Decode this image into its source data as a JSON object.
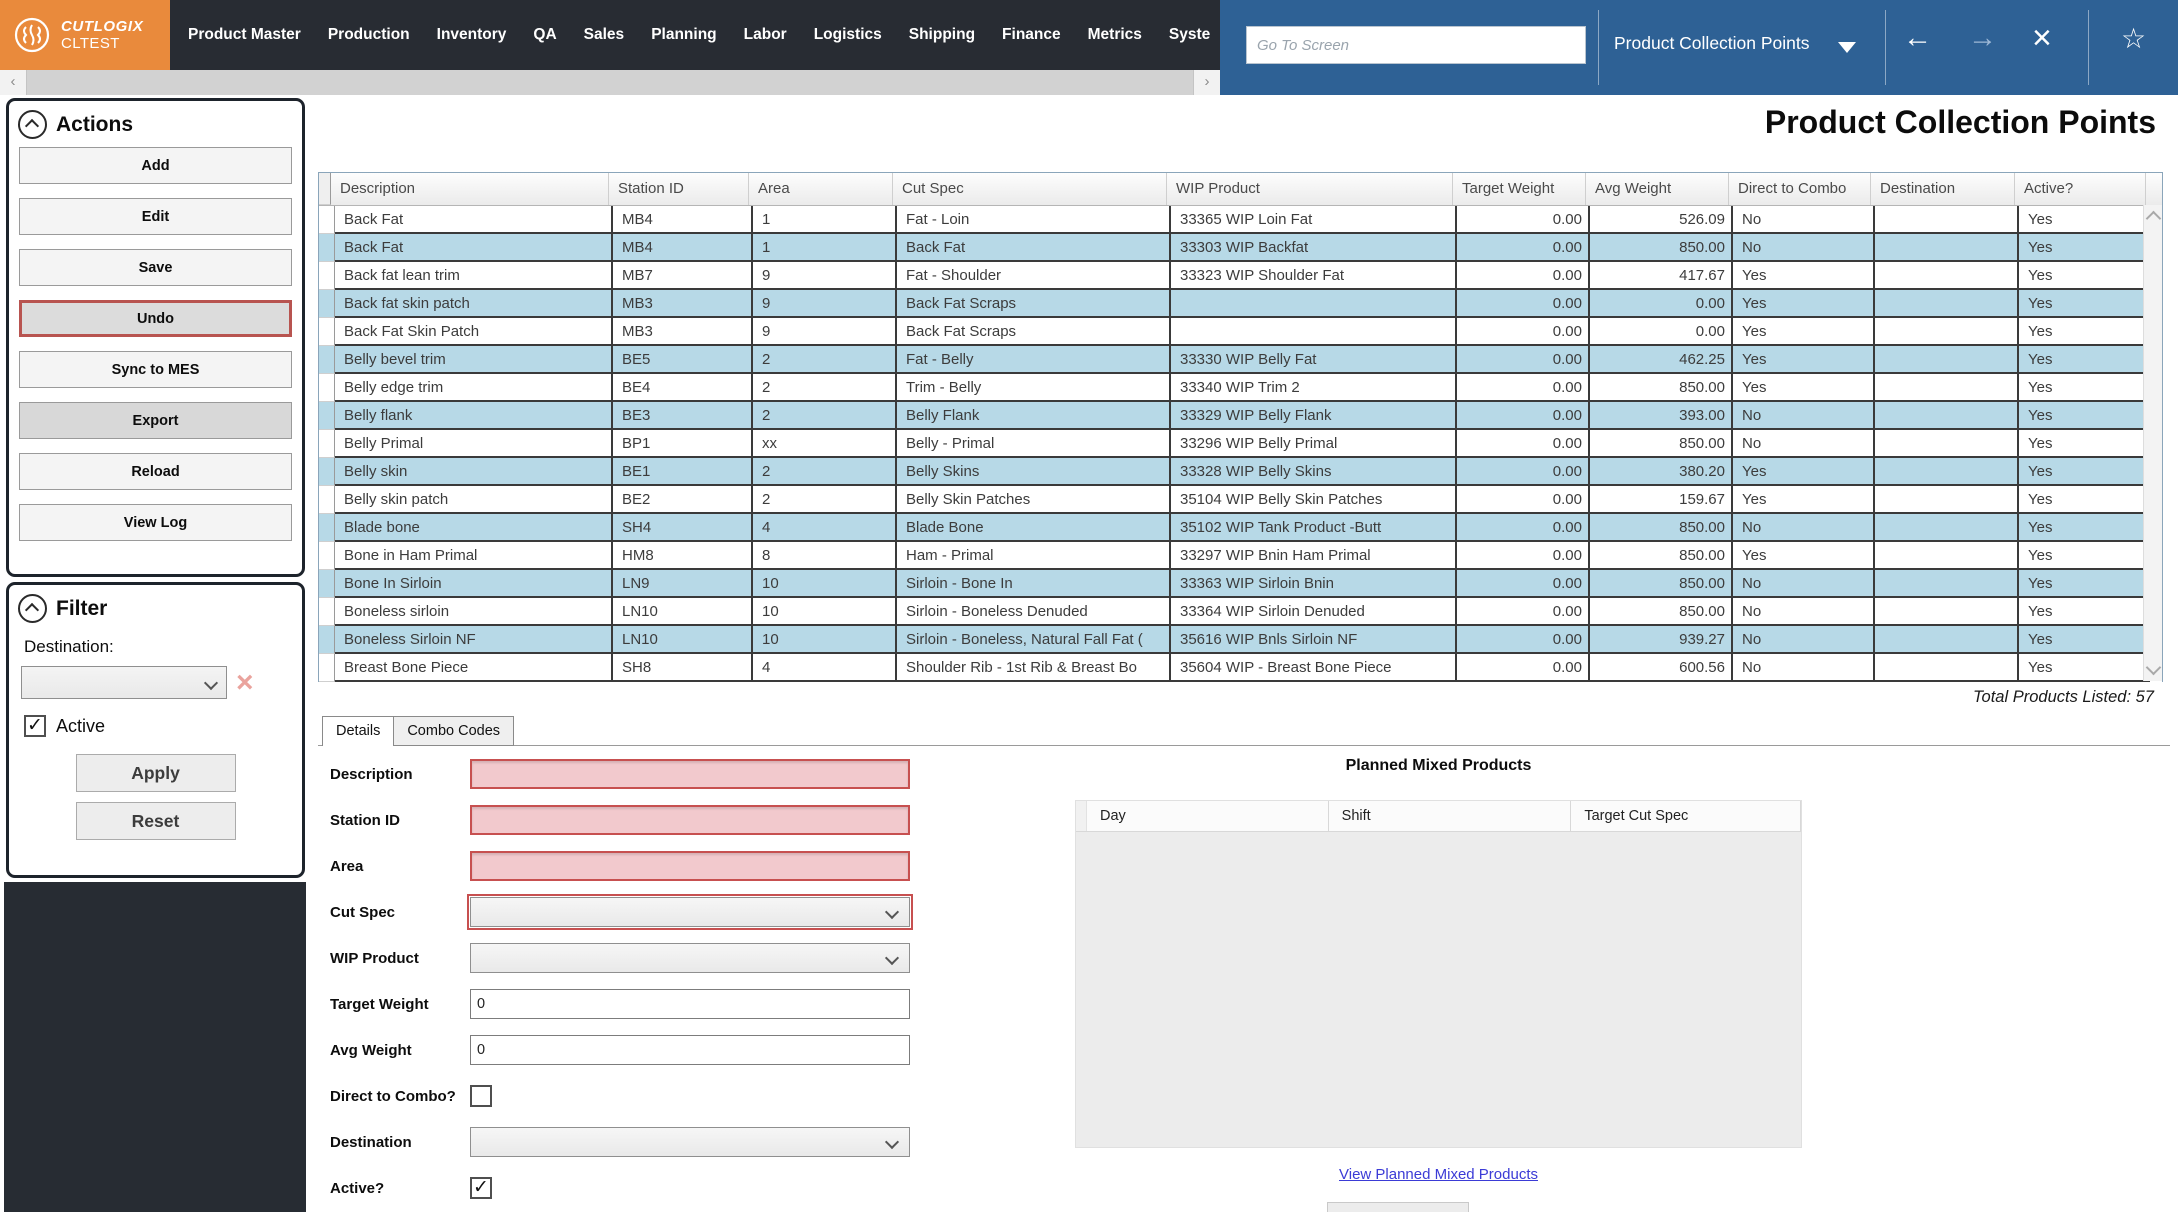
{
  "app": {
    "brand": "CUTLOGIX",
    "environment": "CLTEST"
  },
  "nav": {
    "items": [
      "Product Master",
      "Production",
      "Inventory",
      "QA",
      "Sales",
      "Planning",
      "Labor",
      "Logistics",
      "Shipping",
      "Finance",
      "Metrics",
      "Syste"
    ],
    "go_to_placeholder": "Go To Screen",
    "screen_selector": "Product Collection Points"
  },
  "icons": {
    "back": "←",
    "forward": "→",
    "close": "×",
    "favorite": "☆",
    "clear": "×",
    "check": "✓"
  },
  "page": {
    "title": "Product Collection Points",
    "total_label": "Total Products Listed: 57"
  },
  "actions": {
    "title": "Actions",
    "buttons": [
      {
        "label": "Add",
        "variant": "default"
      },
      {
        "label": "Edit",
        "variant": "default"
      },
      {
        "label": "Save",
        "variant": "default"
      },
      {
        "label": "Undo",
        "variant": "undo"
      },
      {
        "label": "Sync to MES",
        "variant": "default"
      },
      {
        "label": "Export",
        "variant": "pressed"
      },
      {
        "label": "Reload",
        "variant": "default"
      },
      {
        "label": "View Log",
        "variant": "default"
      }
    ]
  },
  "filter": {
    "title": "Filter",
    "destination_label": "Destination:",
    "destination_value": "",
    "active_label": "Active",
    "active_checked": true,
    "apply_label": "Apply",
    "reset_label": "Reset"
  },
  "table": {
    "columns": [
      "Description",
      "Station ID",
      "Area",
      "Cut Spec",
      "WIP Product",
      "Target Weight",
      "Avg Weight",
      "Direct to Combo",
      "Destination",
      "Active?"
    ],
    "rows": [
      [
        "Back Fat",
        "MB4",
        "1",
        "Fat - Loin",
        "33365 WIP Loin Fat",
        "0.00",
        "526.09",
        "No",
        "",
        "Yes"
      ],
      [
        "Back Fat",
        "MB4",
        "1",
        "Back Fat",
        "33303 WIP Backfat",
        "0.00",
        "850.00",
        "No",
        "",
        "Yes"
      ],
      [
        "Back fat lean trim",
        "MB7",
        "9",
        "Fat - Shoulder",
        "33323 WIP Shoulder Fat",
        "0.00",
        "417.67",
        "Yes",
        "",
        "Yes"
      ],
      [
        "Back fat skin patch",
        "MB3",
        "9",
        "Back Fat Scraps",
        "",
        "0.00",
        "0.00",
        "Yes",
        "",
        "Yes"
      ],
      [
        "Back Fat Skin Patch",
        "MB3",
        "9",
        "Back Fat Scraps",
        "",
        "0.00",
        "0.00",
        "Yes",
        "",
        "Yes"
      ],
      [
        "Belly bevel trim",
        "BE5",
        "2",
        "Fat - Belly",
        "33330 WIP Belly Fat",
        "0.00",
        "462.25",
        "Yes",
        "",
        "Yes"
      ],
      [
        "Belly edge trim",
        "BE4",
        "2",
        "Trim - Belly",
        "33340 WIP Trim 2",
        "0.00",
        "850.00",
        "Yes",
        "",
        "Yes"
      ],
      [
        "Belly flank",
        "BE3",
        "2",
        "Belly Flank",
        "33329 WIP Belly Flank",
        "0.00",
        "393.00",
        "No",
        "",
        "Yes"
      ],
      [
        "Belly Primal",
        "BP1",
        "xx",
        "Belly - Primal",
        "33296 WIP Belly Primal",
        "0.00",
        "850.00",
        "No",
        "",
        "Yes"
      ],
      [
        "Belly skin",
        "BE1",
        "2",
        "Belly Skins",
        "33328 WIP Belly Skins",
        "0.00",
        "380.20",
        "Yes",
        "",
        "Yes"
      ],
      [
        "Belly skin patch",
        "BE2",
        "2",
        "Belly Skin Patches",
        "35104 WIP Belly Skin Patches",
        "0.00",
        "159.67",
        "Yes",
        "",
        "Yes"
      ],
      [
        "Blade bone",
        "SH4",
        "4",
        "Blade Bone",
        "35102 WIP Tank Product -Butt",
        "0.00",
        "850.00",
        "No",
        "",
        "Yes"
      ],
      [
        "Bone in Ham Primal",
        "HM8",
        "8",
        "Ham - Primal",
        "33297 WIP Bnin Ham Primal",
        "0.00",
        "850.00",
        "Yes",
        "",
        "Yes"
      ],
      [
        "Bone In Sirloin",
        "LN9",
        "10",
        "Sirloin - Bone In",
        "33363 WIP Sirloin Bnin",
        "0.00",
        "850.00",
        "No",
        "",
        "Yes"
      ],
      [
        "Boneless sirloin",
        "LN10",
        "10",
        "Sirloin - Boneless Denuded",
        "33364 WIP Sirloin Denuded",
        "0.00",
        "850.00",
        "No",
        "",
        "Yes"
      ],
      [
        "Boneless Sirloin NF",
        "LN10",
        "10",
        "Sirloin - Boneless, Natural Fall Fat (",
        "35616 WIP Bnls Sirloin NF",
        "0.00",
        "939.27",
        "No",
        "",
        "Yes"
      ],
      [
        "Breast Bone Piece",
        "SH8",
        "4",
        "Shoulder Rib - 1st Rib & Breast Bo",
        "35604 WIP - Breast Bone Piece",
        "0.00",
        "600.56",
        "No",
        "",
        "Yes"
      ]
    ]
  },
  "details": {
    "tab_details": "Details",
    "tab_combo": "Combo Codes",
    "description_label": "Description",
    "station_label": "Station ID",
    "area_label": "Area",
    "cutspec_label": "Cut Spec",
    "wip_label": "WIP Product",
    "target_label": "Target Weight",
    "target_value": "0",
    "avg_label": "Avg Weight",
    "avg_value": "0",
    "direct_label": "Direct to Combo?",
    "destination_label": "Destination",
    "active_label": "Active?"
  },
  "planned": {
    "title": "Planned Mixed Products",
    "columns": [
      "Day",
      "Shift",
      "Target Cut Spec"
    ],
    "link": "View Planned Mixed Products"
  },
  "colors": {
    "brand_orange": "#e98a3c",
    "nav_dark": "#282c33",
    "accent_blue": "#2e6195",
    "row_alt_blue": "#b7d9e7",
    "required_pink": "#f2c9cd",
    "required_red": "#c75050"
  }
}
